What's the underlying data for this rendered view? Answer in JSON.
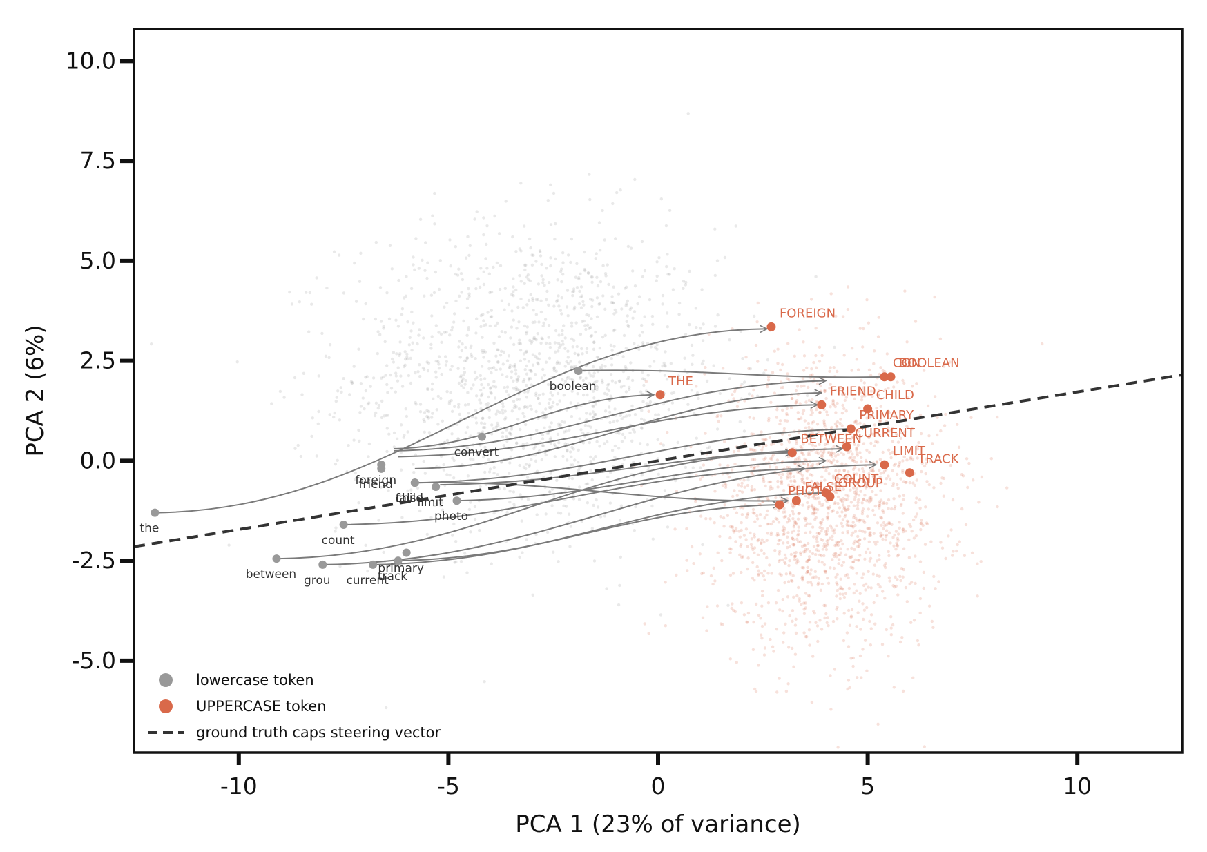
{
  "chart_data": {
    "type": "scatter",
    "xlabel": "PCA 1   (23% of variance)",
    "ylabel": "PCA 2   (6%)",
    "xlim": [
      -12.5,
      12.5
    ],
    "ylim": [
      -7.3,
      10.8
    ],
    "x_ticks": [
      -10,
      -5,
      0,
      5,
      10
    ],
    "x_tick_labels": [
      "-10",
      "-5",
      "0",
      "5",
      "10"
    ],
    "y_ticks": [
      10.0,
      7.5,
      5.0,
      2.5,
      0.0,
      -2.5,
      -5.0
    ],
    "y_tick_labels": [
      "10.0",
      "7.5",
      "5.0",
      "2.5",
      "0.0",
      "-2.5",
      "-5.0"
    ],
    "grid": false,
    "style": "hand-drawn",
    "legend": {
      "placement": "lower-left",
      "entries": [
        {
          "label": "lowercase token",
          "color": "#999999",
          "kind": "dot"
        },
        {
          "label": "UPPERCASE token",
          "color": "#d9694a",
          "kind": "dot"
        },
        {
          "label": "ground truth caps steering vector",
          "color": "#333333",
          "kind": "dashed"
        }
      ]
    },
    "colors": {
      "lowercase": "#999999",
      "uppercase": "#d9694a",
      "arrow": "#7a7a7a",
      "vector": "#333333"
    },
    "background_clouds": [
      {
        "name": "lowercase token",
        "color": "#999999",
        "center": [
          -3.0,
          2.0
        ],
        "spread": [
          3.0,
          2.6
        ],
        "count": 1500
      },
      {
        "name": "UPPERCASE token",
        "color": "#d9694a",
        "center": [
          4.0,
          -1.0
        ],
        "spread": [
          1.9,
          2.4
        ],
        "count": 1700
      }
    ],
    "steering_vector": {
      "start": [
        -12.5,
        -2.15
      ],
      "end": [
        12.5,
        2.15
      ]
    },
    "lowercase_points": [
      {
        "label": "the",
        "x": -12.0,
        "y": -1.3
      },
      {
        "label": "boolean",
        "x": -1.9,
        "y": 2.25
      },
      {
        "label": "convert",
        "x": -4.2,
        "y": 0.6
      },
      {
        "label": "foreign",
        "x": -6.6,
        "y": -0.1
      },
      {
        "label": "friend",
        "x": -6.6,
        "y": -0.2
      },
      {
        "label": "false",
        "x": -5.8,
        "y": -0.55
      },
      {
        "label": "child",
        "x": -5.8,
        "y": -0.55
      },
      {
        "label": "limit",
        "x": -5.3,
        "y": -0.65
      },
      {
        "label": "count",
        "x": -7.5,
        "y": -1.6
      },
      {
        "label": "photo",
        "x": -4.8,
        "y": -1.0
      },
      {
        "label": "primary",
        "x": -6.0,
        "y": -2.3
      },
      {
        "label": "between",
        "x": -9.1,
        "y": -2.45
      },
      {
        "label": "grou",
        "x": -8.0,
        "y": -2.6
      },
      {
        "label": "current",
        "x": -6.8,
        "y": -2.6
      },
      {
        "label": "track",
        "x": -6.2,
        "y": -2.5
      }
    ],
    "uppercase_points": [
      {
        "label": "FOREIGN",
        "x": 2.7,
        "y": 3.35
      },
      {
        "label": "CON",
        "x": 5.4,
        "y": 2.1
      },
      {
        "label": "BOOLEAN",
        "x": 5.55,
        "y": 2.1
      },
      {
        "label": "FRIEND",
        "x": 3.9,
        "y": 1.4
      },
      {
        "label": "THE",
        "x": 0.05,
        "y": 1.65
      },
      {
        "label": "CHILD",
        "x": 5.0,
        "y": 1.3
      },
      {
        "label": "PRIMARY",
        "x": 4.6,
        "y": 0.8
      },
      {
        "label": "CURRENT",
        "x": 4.5,
        "y": 0.35
      },
      {
        "label": "BETWEEN",
        "x": 3.2,
        "y": 0.2
      },
      {
        "label": "LIMIT",
        "x": 5.4,
        "y": -0.1
      },
      {
        "label": "TRACK",
        "x": 6.0,
        "y": -0.3
      },
      {
        "label": "COUNT",
        "x": 4.0,
        "y": -0.8
      },
      {
        "label": "FALSE",
        "x": 3.3,
        "y": -1.0
      },
      {
        "label": "GROUP",
        "x": 4.1,
        "y": -0.9
      },
      {
        "label": "PHOTO",
        "x": 2.9,
        "y": -1.1
      }
    ],
    "arrows": [
      {
        "from": [
          -12.0,
          -1.3
        ],
        "to": [
          2.6,
          3.3
        ]
      },
      {
        "from": [
          -1.9,
          2.25
        ],
        "to": [
          5.5,
          2.1
        ]
      },
      {
        "from": [
          -6.3,
          0.3
        ],
        "to": [
          -0.1,
          1.65
        ]
      },
      {
        "from": [
          -6.3,
          0.25
        ],
        "to": [
          4.0,
          2.0
        ]
      },
      {
        "from": [
          -6.2,
          0.1
        ],
        "to": [
          3.8,
          1.4
        ]
      },
      {
        "from": [
          -5.8,
          -0.2
        ],
        "to": [
          3.9,
          1.7
        ]
      },
      {
        "from": [
          -5.8,
          -0.55
        ],
        "to": [
          4.7,
          0.8
        ]
      },
      {
        "from": [
          -5.2,
          -0.6
        ],
        "to": [
          4.4,
          0.3
        ]
      },
      {
        "from": [
          -4.8,
          -1.0
        ],
        "to": [
          4.0,
          0.0
        ]
      },
      {
        "from": [
          -7.5,
          -1.6
        ],
        "to": [
          3.5,
          -0.2
        ]
      },
      {
        "from": [
          -9.1,
          -2.45
        ],
        "to": [
          3.2,
          0.2
        ]
      },
      {
        "from": [
          -8.0,
          -2.6
        ],
        "to": [
          5.2,
          -0.1
        ]
      },
      {
        "from": [
          -6.8,
          -2.6
        ],
        "to": [
          4.1,
          -0.8
        ]
      },
      {
        "from": [
          -6.2,
          -2.5
        ],
        "to": [
          2.9,
          -1.1
        ]
      },
      {
        "from": [
          -5.8,
          -0.55
        ],
        "to": [
          3.1,
          -1.0
        ]
      }
    ]
  }
}
